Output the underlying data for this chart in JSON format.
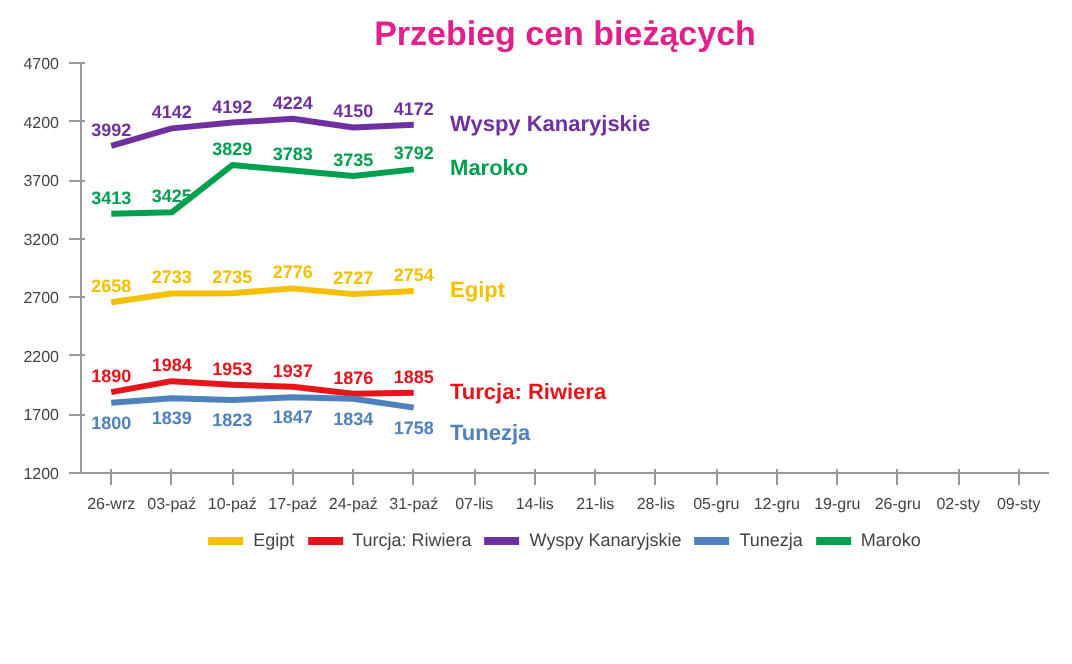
{
  "chart_data": {
    "type": "line",
    "title": "Przebieg cen bieżących",
    "categories": [
      "26-wrz",
      "03-paź",
      "10-paź",
      "17-paź",
      "24-paź",
      "31-paź",
      "07-lis",
      "14-lis",
      "21-lis",
      "28-lis",
      "05-gru",
      "12-gru",
      "19-gru",
      "26-gru",
      "02-sty",
      "09-sty"
    ],
    "series": [
      {
        "name": "Egipt",
        "color": "#f5c000",
        "values": [
          2658,
          2733,
          2735,
          2776,
          2727,
          2754,
          null,
          null,
          null,
          null,
          null,
          null,
          null,
          null,
          null,
          null
        ]
      },
      {
        "name": "Turcja: Riwiera",
        "color": "#e8141c",
        "values": [
          1890,
          1984,
          1953,
          1937,
          1876,
          1885,
          null,
          null,
          null,
          null,
          null,
          null,
          null,
          null,
          null,
          null
        ]
      },
      {
        "name": "Wyspy Kanaryjskie",
        "color": "#7030a0",
        "values": [
          3992,
          4142,
          4192,
          4224,
          4150,
          4172,
          null,
          null,
          null,
          null,
          null,
          null,
          null,
          null,
          null,
          null
        ]
      },
      {
        "name": "Tunezja",
        "color": "#4f81bd",
        "values": [
          1800,
          1839,
          1823,
          1847,
          1834,
          1758,
          null,
          null,
          null,
          null,
          null,
          null,
          null,
          null,
          null,
          null
        ]
      },
      {
        "name": "Maroko",
        "color": "#00a050",
        "values": [
          3413,
          3425,
          3829,
          3783,
          3735,
          3792,
          null,
          null,
          null,
          null,
          null,
          null,
          null,
          null,
          null,
          null
        ]
      }
    ],
    "ylim": [
      1200,
      4700
    ],
    "yticks": [
      1200,
      1700,
      2200,
      2700,
      3200,
      3700,
      4200,
      4700
    ],
    "data_labels": true,
    "grid": false,
    "legend": "bottom",
    "line_style": "solid",
    "marker": "none"
  }
}
